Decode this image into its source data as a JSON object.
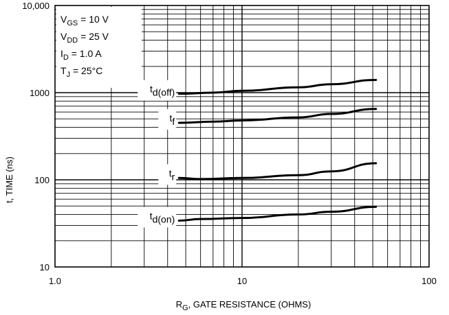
{
  "chart_data": {
    "type": "line",
    "title": "",
    "xlabel": {
      "main": "R",
      "sub": "G",
      "rest": ", GATE RESISTANCE (OHMS)"
    },
    "ylabel": "t, TIME (ns)",
    "x_scale": "log",
    "y_scale": "log",
    "xlim": [
      1,
      100
    ],
    "ylim": [
      10,
      10000
    ],
    "grid": true,
    "x_ticks": [
      {
        "value": 1,
        "label": "1.0"
      },
      {
        "value": 10,
        "label": "10"
      },
      {
        "value": 100,
        "label": "100"
      }
    ],
    "y_ticks": [
      {
        "value": 10,
        "label": "10"
      },
      {
        "value": 100,
        "label": "100"
      },
      {
        "value": 1000,
        "label": "1000"
      },
      {
        "value": 10000,
        "label": "10,000"
      }
    ],
    "conditions": [
      {
        "main": "V",
        "sub": "GS",
        "rest": " = 10 V"
      },
      {
        "main": "V",
        "sub": "DD",
        "rest": " = 25 V"
      },
      {
        "main": "I",
        "sub": "D",
        "rest": " = 1.0 A"
      },
      {
        "main": "T",
        "sub": "J",
        "rest": " = 25°C"
      }
    ],
    "series": [
      {
        "label_main": "t",
        "label_sub": "d(off)",
        "x": [
          4.6,
          7,
          10,
          20,
          30,
          52
        ],
        "y": [
          970,
          1000,
          1050,
          1150,
          1250,
          1400
        ]
      },
      {
        "label_main": "t",
        "label_sub": "f",
        "x": [
          4.6,
          7,
          10,
          20,
          30,
          52
        ],
        "y": [
          450,
          465,
          480,
          520,
          570,
          650
        ]
      },
      {
        "label_main": "t",
        "label_sub": "r",
        "x": [
          4.6,
          6,
          10,
          20,
          30,
          52
        ],
        "y": [
          105,
          102,
          105,
          113,
          125,
          155
        ]
      },
      {
        "label_main": "t",
        "label_sub": "d(on)",
        "x": [
          4.6,
          6,
          10,
          20,
          30,
          52
        ],
        "y": [
          34,
          35.5,
          36.5,
          40,
          43,
          49
        ]
      }
    ]
  }
}
